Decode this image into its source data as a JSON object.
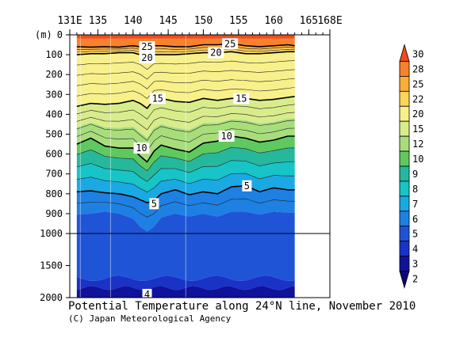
{
  "chart_data": {
    "type": "contour",
    "title": "Potential Temperature along 24°N line, November 2010",
    "credit": "(C) Japan Meteorological Agency",
    "x_axis": {
      "ticks": [
        "131E",
        "135",
        "140",
        "145",
        "150",
        "155",
        "160",
        "165",
        "168E"
      ],
      "tick_values": [
        131,
        135,
        140,
        145,
        150,
        155,
        160,
        165,
        168
      ],
      "range": [
        131,
        168
      ],
      "data_extent": [
        132,
        163
      ]
    },
    "y_axis": {
      "unit": "(m)",
      "ticks": [
        "0",
        "100",
        "200",
        "300",
        "400",
        "500",
        "600",
        "700",
        "800",
        "900",
        "1000",
        "1500",
        "2000"
      ],
      "tick_values": [
        0,
        100,
        200,
        300,
        400,
        500,
        600,
        700,
        800,
        900,
        1000,
        1500,
        2000
      ],
      "upper_range": [
        0,
        1000
      ],
      "lower_range": [
        1000,
        2000
      ],
      "inverted": true
    },
    "colorbar": {
      "labels": [
        "30",
        "28",
        "25",
        "22",
        "20",
        "15",
        "12",
        "10",
        "9",
        "8",
        "7",
        "6",
        "5",
        "4",
        "3",
        "2"
      ],
      "colors": [
        "#f04a1e",
        "#f7812f",
        "#fcae3a",
        "#fcd55b",
        "#f8f08b",
        "#d8ec8c",
        "#a8dd7c",
        "#5ec95e",
        "#26b89c",
        "#17c4c8",
        "#1aa9e3",
        "#1e80e2",
        "#2054d7",
        "#1a32c5",
        "#10129a",
        "#0a0672"
      ]
    },
    "contour_labels": [
      {
        "text": "25",
        "x": 142.0,
        "depth": 60
      },
      {
        "text": "25",
        "x": 153.8,
        "depth": 45
      },
      {
        "text": "20",
        "x": 142.0,
        "depth": 115
      },
      {
        "text": "20",
        "x": 151.8,
        "depth": 90
      },
      {
        "text": "15",
        "x": 143.5,
        "depth": 320
      },
      {
        "text": "15",
        "x": 155.4,
        "depth": 320
      },
      {
        "text": "10",
        "x": 141.2,
        "depth": 570
      },
      {
        "text": "10",
        "x": 153.3,
        "depth": 510
      },
      {
        "text": "5",
        "x": 156.2,
        "depth": 760
      },
      {
        "text": "5",
        "x": 143.0,
        "depth": 850
      },
      {
        "text": "4",
        "x": 142.0,
        "depth": 1950
      }
    ],
    "isotherm_depths": {
      "x": [
        132,
        134,
        136,
        138,
        140,
        141,
        142,
        143,
        144,
        146,
        148,
        150,
        152,
        154,
        156,
        158,
        160,
        162,
        163
      ],
      "t25": [
        60,
        62,
        60,
        62,
        55,
        60,
        80,
        55,
        55,
        60,
        60,
        50,
        50,
        45,
        55,
        60,
        55,
        50,
        55
      ],
      "t20": [
        100,
        95,
        95,
        90,
        90,
        100,
        125,
        100,
        100,
        100,
        95,
        90,
        90,
        85,
        95,
        95,
        90,
        85,
        85
      ],
      "t15": [
        360,
        345,
        350,
        345,
        330,
        345,
        370,
        325,
        320,
        335,
        340,
        320,
        330,
        320,
        320,
        330,
        325,
        315,
        310
      ],
      "t10": [
        550,
        520,
        560,
        570,
        570,
        610,
        640,
        585,
        555,
        575,
        590,
        545,
        535,
        510,
        520,
        540,
        530,
        510,
        510
      ],
      "t5": [
        790,
        785,
        795,
        800,
        815,
        830,
        845,
        835,
        800,
        780,
        805,
        790,
        800,
        765,
        760,
        790,
        770,
        780,
        780
      ],
      "t4": [
        905,
        900,
        890,
        900,
        925,
        965,
        990,
        965,
        920,
        900,
        915,
        900,
        915,
        890,
        890,
        905,
        890,
        895,
        895
      ]
    }
  }
}
